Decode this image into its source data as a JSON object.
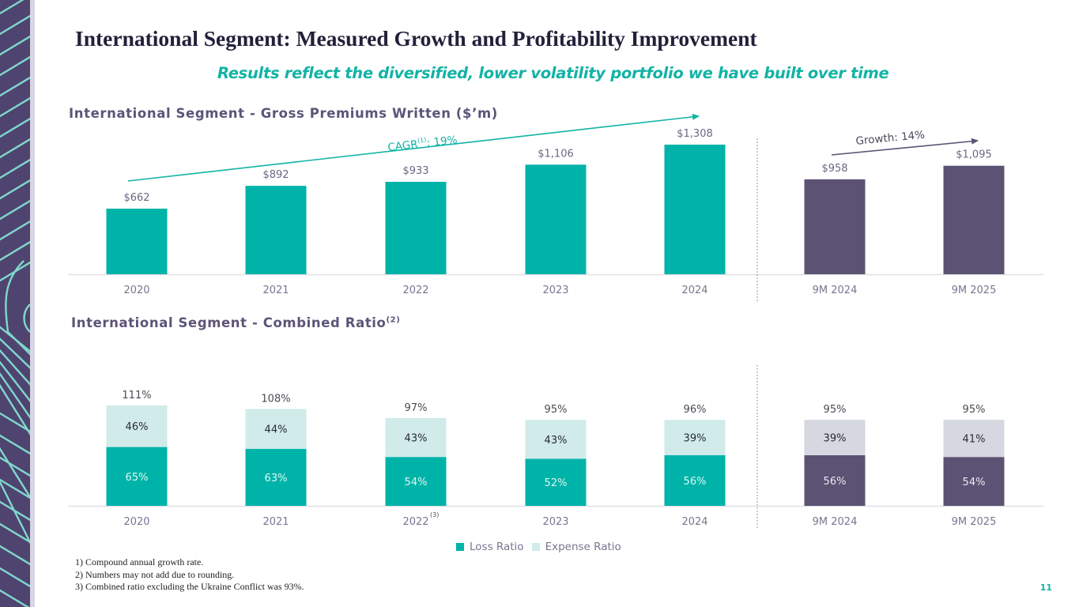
{
  "slide": {
    "title": "International Segment: Measured Growth and Profitability Improvement",
    "subtitle": "Results reflect the diversified, lower volatility portfolio we have built over time",
    "page_number": "11",
    "colors": {
      "teal": "#00b3a8",
      "purple": "#5c5273",
      "light_teal": "#d0ebea",
      "light_gray": "#d5d8e1",
      "accent_text": "#12b3a5",
      "heading": "#5d5478",
      "strip": "#4f4470",
      "strip_lines": "#7fd8cc"
    },
    "footnotes": [
      "1)  Compound annual growth rate.",
      "2) Numbers may not add due to rounding.",
      "3) Combined ratio excluding the Ukraine Conflict was 93%."
    ]
  },
  "chart_data": [
    {
      "type": "bar",
      "title": "International Segment - Gross Premiums Written ($’m)",
      "categories": [
        "2020",
        "2021",
        "2022",
        "2023",
        "2024",
        "9M 2024",
        "9M 2025"
      ],
      "values": [
        662,
        892,
        933,
        1106,
        1308,
        958,
        1095
      ],
      "value_labels": [
        "$662",
        "$892",
        "$933",
        "$1,106",
        "$1,308",
        "$958",
        "$1,095"
      ],
      "bar_groups": [
        "annual",
        "annual",
        "annual",
        "annual",
        "annual",
        "ytd",
        "ytd"
      ],
      "xlabel": "",
      "ylabel": "",
      "ylim": [
        0,
        1308
      ],
      "grid": false,
      "annotations": [
        {
          "text": "CAGR",
          "sup": "(1)",
          "suffix": ": 19%",
          "from": "2020",
          "to": "2024",
          "color": "#12b3a5"
        },
        {
          "text": "Growth: 14%",
          "sup": "",
          "suffix": "",
          "from": "9M 2024",
          "to": "9M 2025",
          "color": "#5c5273"
        }
      ]
    },
    {
      "type": "bar",
      "stacked": true,
      "title": "International Segment - Combined Ratio",
      "title_sup": "(2)",
      "categories": [
        "2020",
        "2021",
        "2022",
        "2023",
        "2024",
        "9M 2024",
        "9M 2025"
      ],
      "category_sups": [
        "",
        "",
        "(3)",
        "",
        "",
        "",
        ""
      ],
      "bar_groups": [
        "annual",
        "annual",
        "annual",
        "annual",
        "annual",
        "ytd",
        "ytd"
      ],
      "series": [
        {
          "name": "Loss Ratio",
          "values": [
            65,
            63,
            54,
            52,
            56,
            56,
            54
          ]
        },
        {
          "name": "Expense Ratio",
          "values": [
            46,
            44,
            43,
            43,
            39,
            39,
            41
          ]
        }
      ],
      "totals": [
        111,
        108,
        97,
        95,
        96,
        95,
        95
      ],
      "unit": "%",
      "ylim": [
        0,
        111
      ],
      "grid": false,
      "legend": {
        "placement": "bottom-center",
        "entries": [
          "Loss Ratio",
          "Expense Ratio"
        ]
      }
    }
  ]
}
